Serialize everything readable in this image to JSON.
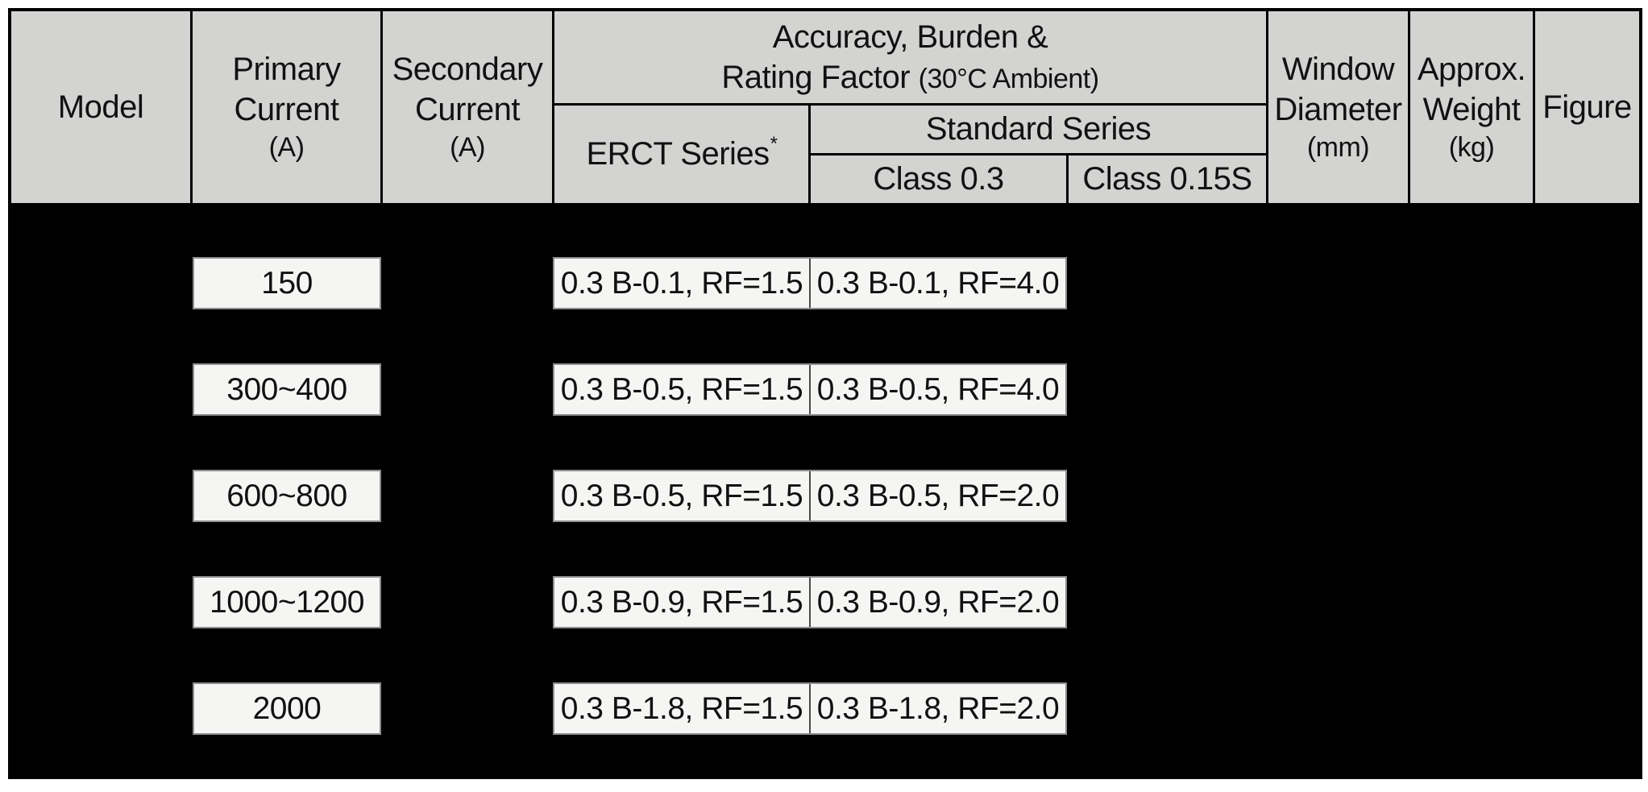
{
  "colors": {
    "header_bg": "#d3d3d2",
    "body_bg": "#000000",
    "cell_bg": "#f5f5f4",
    "grid_line": "#000000",
    "text": "#111111"
  },
  "header": {
    "model": "Model",
    "primary_l1": "Primary",
    "primary_l2": "Current",
    "primary_unit": "(A)",
    "secondary_l1": "Secondary",
    "secondary_l2": "Current",
    "secondary_unit": "(A)",
    "accuracy_l1": "Accuracy, Burden &",
    "accuracy_l2": "Rating Factor",
    "accuracy_l2_small": "(30°C Ambient)",
    "erct": "ERCT Series",
    "erct_sup": "*",
    "standard": "Standard Series",
    "class03": "Class 0.3",
    "class015s": "Class 0.15S",
    "window_l1": "Window",
    "window_l2": "Diameter",
    "window_unit": "(mm)",
    "approx_l1": "Approx.",
    "approx_l2": "Weight",
    "approx_unit": "(kg)",
    "figure": "Figure"
  },
  "rows": [
    {
      "primary_current": "150",
      "erct": "0.3 B-0.1, RF=1.5",
      "class_0_3": "0.3 B-0.1, RF=4.0"
    },
    {
      "primary_current": "300~400",
      "erct": "0.3 B-0.5, RF=1.5",
      "class_0_3": "0.3 B-0.5, RF=4.0"
    },
    {
      "primary_current": "600~800",
      "erct": "0.3 B-0.5, RF=1.5",
      "class_0_3": "0.3 B-0.5, RF=2.0"
    },
    {
      "primary_current": "1000~1200",
      "erct": "0.3 B-0.9, RF=1.5",
      "class_0_3": "0.3 B-0.9, RF=2.0"
    },
    {
      "primary_current": "2000",
      "erct": "0.3 B-1.8, RF=1.5",
      "class_0_3": "0.3 B-1.8, RF=2.0"
    }
  ]
}
